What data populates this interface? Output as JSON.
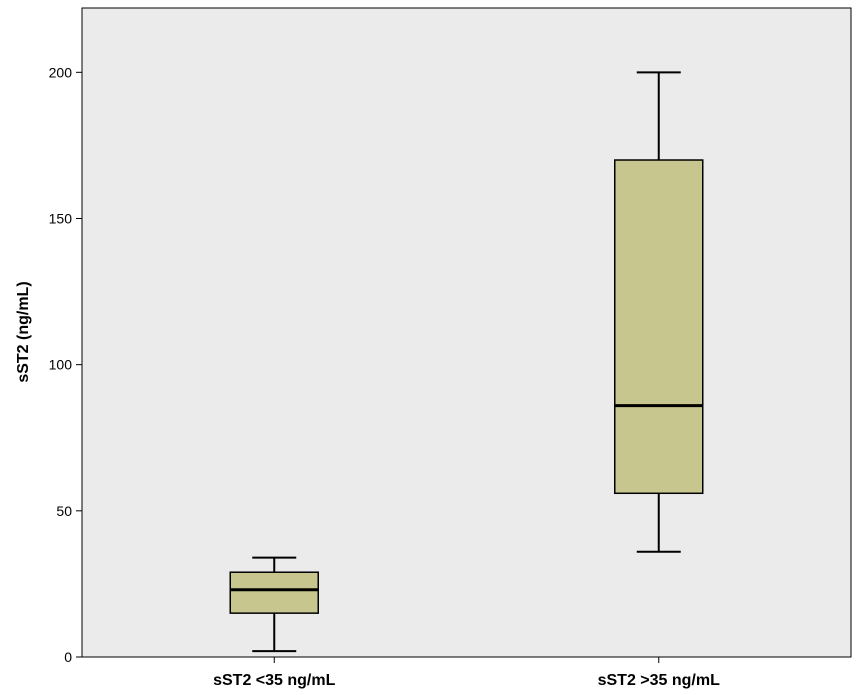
{
  "chart_data": {
    "type": "box",
    "title": "",
    "xlabel": "",
    "ylabel": "sST2 (ng/mL)",
    "ylim": [
      0,
      222
    ],
    "yticks": [
      0,
      50,
      100,
      150,
      200
    ],
    "grid": false,
    "categories": [
      "sST2 <35 ng/mL",
      "sST2 >35 ng/mL"
    ],
    "boxes": [
      {
        "category": "sST2 <35 ng/mL",
        "min": 2,
        "q1": 15,
        "median": 23,
        "q3": 29,
        "max": 34
      },
      {
        "category": "sST2 >35 ng/mL",
        "min": 36,
        "q1": 56,
        "median": 86,
        "q3": 170,
        "max": 200
      }
    ],
    "colors": {
      "plot_background": "#ebebeb",
      "box_fill": "#c8c68f",
      "line": "#000000"
    }
  }
}
